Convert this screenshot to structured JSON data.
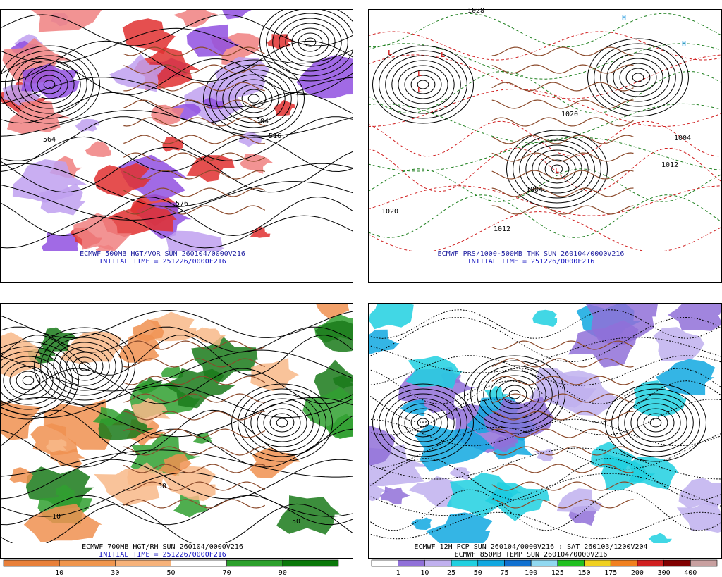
{
  "panels": [
    {
      "caption": "ECMWF 500MB HGT/VOR SUN 260104/0000V216",
      "initial_time": "INITIAL TIME = 251226/0000F216",
      "contour_labels": [
        "564",
        "504",
        "516",
        "576"
      ]
    },
    {
      "caption": "ECMWF PRS/1000-500MB THK SUN 260104/0000V216",
      "initial_time": "INITIAL TIME = 251226/0000F216",
      "contour_labels": [
        "1028",
        "1020",
        "1020",
        "1012",
        "1004",
        "1004",
        "1012"
      ],
      "centers": [
        "L",
        "L",
        "L",
        "L",
        "L",
        "H",
        "H"
      ]
    },
    {
      "caption": "ECMWF 700MB HGT/RH SUN 260104/0000V216",
      "initial_time": "INITIAL TIME = 251226/0000F216",
      "contour_labels": [
        "10",
        "50",
        "50"
      ]
    },
    {
      "caption": "ECMWF 12H PCP SUN 260104/0000V216 : SAT 260103/1200V204",
      "initial_time": "ECMWF 850MB TEMP SUN 260104/0000V216"
    }
  ],
  "colorbars": [
    {
      "labels": [
        10,
        30,
        50,
        70,
        90
      ],
      "colors": [
        "#e8803a",
        "#f0964e",
        "#f6b27a",
        "#ffffff",
        "#2ca02c",
        "#0a780a"
      ]
    },
    {
      "labels": [
        1,
        10,
        25,
        50,
        75,
        100,
        125,
        150,
        175,
        200,
        300,
        400
      ],
      "colors": [
        "#ffffff",
        "#9070d8",
        "#c0b0ee",
        "#20d0e0",
        "#10a8e0",
        "#1070d0",
        "#90d8f0",
        "#20c020",
        "#f0d020",
        "#f08020",
        "#d02020",
        "#800000",
        "#c8a0a0"
      ]
    }
  ]
}
